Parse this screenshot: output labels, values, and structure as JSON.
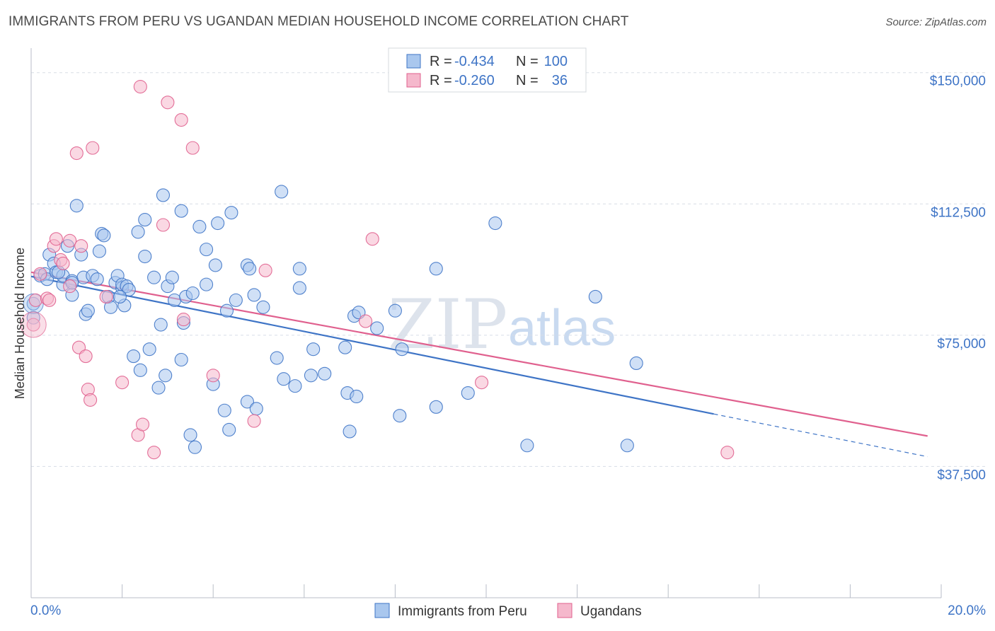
{
  "title": "IMMIGRANTS FROM PERU VS UGANDAN MEDIAN HOUSEHOLD INCOME CORRELATION CHART",
  "source": "Source: ZipAtlas.com",
  "watermark": {
    "part1": "ZIP",
    "part2": "atlas"
  },
  "colors": {
    "blue": "#3e74c6",
    "blue_fill": "#a9c7ee",
    "pink": "#e0608e",
    "pink_fill": "#f5b8cc",
    "grid": "#d8dde6"
  },
  "stats_box": {
    "rows": [
      {
        "r_label": "R =",
        "r_value": "-0.434",
        "n_label": "N =",
        "n_value": "100"
      },
      {
        "r_label": "R =",
        "r_value": "-0.260",
        "n_label": "N =",
        "n_value": "36"
      }
    ]
  },
  "chart_data": {
    "type": "scatter",
    "ylabel": "Median Household Income",
    "xlim": [
      0,
      20
    ],
    "ylim": [
      0,
      155000
    ],
    "x_tick_labels": {
      "left": "0.0%",
      "right": "20.0%"
    },
    "y_ticks": [
      {
        "value": 37500,
        "label": "$37,500"
      },
      {
        "value": 75000,
        "label": "$75,000"
      },
      {
        "value": 112500,
        "label": "$112,500"
      },
      {
        "value": 150000,
        "label": "$150,000"
      }
    ],
    "legend": [
      "Immigrants from Peru",
      "Ugandans"
    ],
    "series": [
      {
        "name": "Immigrants from Peru",
        "color": "#3e74c6",
        "trend": {
          "x0": 0.0,
          "y0": 91800,
          "x1": 15.0,
          "y1": 52500,
          "dash_to_x": 19.7,
          "dash_to_y": 40300
        },
        "points": [
          [
            0.05,
            84000
          ],
          [
            0.05,
            80000
          ],
          [
            0.2,
            92000
          ],
          [
            0.3,
            92500
          ],
          [
            0.35,
            91000
          ],
          [
            0.4,
            98000
          ],
          [
            0.5,
            95500
          ],
          [
            0.55,
            93000
          ],
          [
            0.7,
            89500
          ],
          [
            0.7,
            92000
          ],
          [
            0.8,
            100500
          ],
          [
            0.9,
            86500
          ],
          [
            0.9,
            90500
          ],
          [
            1.0,
            112000
          ],
          [
            1.1,
            98000
          ],
          [
            1.15,
            91500
          ],
          [
            1.2,
            81000
          ],
          [
            1.25,
            82000
          ],
          [
            1.35,
            92000
          ],
          [
            1.45,
            91000
          ],
          [
            1.5,
            99000
          ],
          [
            1.55,
            104000
          ],
          [
            1.6,
            103500
          ],
          [
            1.7,
            86000
          ],
          [
            1.75,
            83000
          ],
          [
            1.85,
            90000
          ],
          [
            1.9,
            92000
          ],
          [
            2.0,
            88500
          ],
          [
            2.0,
            89500
          ],
          [
            2.05,
            83500
          ],
          [
            2.1,
            89000
          ],
          [
            2.25,
            69000
          ],
          [
            2.35,
            104500
          ],
          [
            2.4,
            65000
          ],
          [
            2.5,
            97500
          ],
          [
            2.5,
            108000
          ],
          [
            2.6,
            71000
          ],
          [
            2.7,
            91500
          ],
          [
            2.8,
            60000
          ],
          [
            2.85,
            78000
          ],
          [
            2.9,
            115000
          ],
          [
            2.95,
            63500
          ],
          [
            3.0,
            89000
          ],
          [
            3.1,
            91500
          ],
          [
            3.15,
            85000
          ],
          [
            3.3,
            68000
          ],
          [
            3.3,
            110500
          ],
          [
            3.35,
            78500
          ],
          [
            3.4,
            86000
          ],
          [
            3.5,
            46500
          ],
          [
            3.55,
            87000
          ],
          [
            3.6,
            43000
          ],
          [
            3.7,
            106000
          ],
          [
            3.85,
            89500
          ],
          [
            3.85,
            99500
          ],
          [
            4.0,
            61000
          ],
          [
            4.05,
            95000
          ],
          [
            4.1,
            107000
          ],
          [
            4.25,
            53500
          ],
          [
            4.3,
            82000
          ],
          [
            4.35,
            48000
          ],
          [
            4.4,
            110000
          ],
          [
            4.5,
            85000
          ],
          [
            4.75,
            56000
          ],
          [
            4.75,
            95000
          ],
          [
            4.8,
            94000
          ],
          [
            4.9,
            86500
          ],
          [
            4.95,
            54000
          ],
          [
            5.1,
            83000
          ],
          [
            5.5,
            116000
          ],
          [
            5.4,
            68500
          ],
          [
            5.55,
            62500
          ],
          [
            5.8,
            60500
          ],
          [
            5.9,
            88500
          ],
          [
            5.9,
            94000
          ],
          [
            6.15,
            63500
          ],
          [
            6.2,
            71000
          ],
          [
            6.45,
            64000
          ],
          [
            6.9,
            71500
          ],
          [
            6.95,
            58500
          ],
          [
            7.0,
            47500
          ],
          [
            7.1,
            80500
          ],
          [
            7.15,
            57500
          ],
          [
            7.2,
            81500
          ],
          [
            7.6,
            77000
          ],
          [
            8.0,
            82000
          ],
          [
            8.1,
            52000
          ],
          [
            8.15,
            71000
          ],
          [
            8.9,
            94000
          ],
          [
            8.9,
            54500
          ],
          [
            9.6,
            58500
          ],
          [
            10.2,
            107000
          ],
          [
            10.9,
            43500
          ],
          [
            12.4,
            86000
          ],
          [
            13.1,
            43500
          ],
          [
            13.3,
            67000
          ],
          [
            2.15,
            88000
          ],
          [
            1.95,
            86000
          ],
          [
            0.6,
            93000
          ],
          [
            0.9,
            90000
          ]
        ]
      },
      {
        "name": "Ugandans",
        "color": "#e0608e",
        "trend": {
          "x0": 0.0,
          "y0": 93000,
          "x1": 19.7,
          "y1": 46200
        },
        "points": [
          [
            0.05,
            78000
          ],
          [
            0.1,
            85000
          ],
          [
            0.2,
            92500
          ],
          [
            0.35,
            85500
          ],
          [
            0.4,
            85000
          ],
          [
            0.5,
            100500
          ],
          [
            0.55,
            102500
          ],
          [
            0.65,
            96500
          ],
          [
            0.7,
            95500
          ],
          [
            0.85,
            89000
          ],
          [
            0.85,
            102000
          ],
          [
            1.0,
            127000
          ],
          [
            1.05,
            71500
          ],
          [
            1.1,
            100500
          ],
          [
            1.2,
            69000
          ],
          [
            1.25,
            59500
          ],
          [
            1.3,
            56500
          ],
          [
            1.35,
            128500
          ],
          [
            1.65,
            86000
          ],
          [
            2.0,
            61500
          ],
          [
            2.35,
            46500
          ],
          [
            2.4,
            146000
          ],
          [
            2.45,
            49500
          ],
          [
            2.7,
            41500
          ],
          [
            2.9,
            106500
          ],
          [
            3.0,
            141500
          ],
          [
            3.35,
            79500
          ],
          [
            3.3,
            136500
          ],
          [
            3.55,
            128500
          ],
          [
            4.0,
            63500
          ],
          [
            4.9,
            50500
          ],
          [
            5.15,
            93500
          ],
          [
            7.35,
            79000
          ],
          [
            7.5,
            102500
          ],
          [
            9.9,
            61500
          ],
          [
            15.3,
            41500
          ]
        ]
      }
    ]
  }
}
